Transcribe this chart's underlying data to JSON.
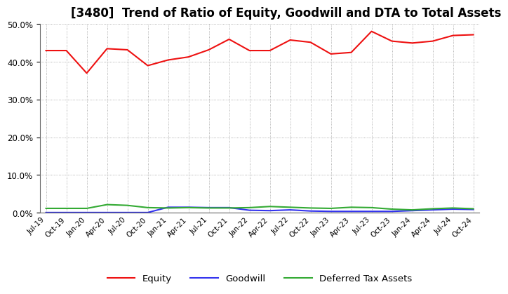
{
  "title": "[3480]  Trend of Ratio of Equity, Goodwill and DTA to Total Assets",
  "x_labels": [
    "Jul-19",
    "Oct-19",
    "Jan-20",
    "Apr-20",
    "Jul-20",
    "Oct-20",
    "Jan-21",
    "Apr-21",
    "Jul-21",
    "Oct-21",
    "Jan-22",
    "Apr-22",
    "Jul-22",
    "Oct-22",
    "Jan-23",
    "Apr-23",
    "Jul-23",
    "Oct-23",
    "Jan-24",
    "Apr-24",
    "Jul-24",
    "Oct-24"
  ],
  "equity": [
    0.43,
    0.43,
    0.37,
    0.435,
    0.432,
    0.39,
    0.405,
    0.413,
    0.432,
    0.46,
    0.43,
    0.43,
    0.458,
    0.452,
    0.421,
    0.425,
    0.481,
    0.455,
    0.45,
    0.455,
    0.47,
    0.472
  ],
  "goodwill": [
    0.0,
    0.0,
    0.0,
    0.0,
    0.0,
    0.0,
    0.014,
    0.014,
    0.013,
    0.013,
    0.006,
    0.005,
    0.007,
    0.004,
    0.003,
    0.003,
    0.003,
    0.003,
    0.005,
    0.007,
    0.009,
    0.008
  ],
  "dta": [
    0.011,
    0.011,
    0.011,
    0.021,
    0.019,
    0.013,
    0.012,
    0.013,
    0.012,
    0.012,
    0.013,
    0.016,
    0.014,
    0.012,
    0.011,
    0.014,
    0.013,
    0.009,
    0.007,
    0.01,
    0.012,
    0.01
  ],
  "equity_color": "#EE1111",
  "goodwill_color": "#3333EE",
  "dta_color": "#33AA33",
  "ylim": [
    0.0,
    0.5
  ],
  "yticks": [
    0.0,
    0.1,
    0.2,
    0.3,
    0.4,
    0.5
  ],
  "background_color": "#FFFFFF",
  "plot_bg_color": "#FFFFFF",
  "grid_color": "#999999",
  "title_fontsize": 12,
  "legend_labels": [
    "Equity",
    "Goodwill",
    "Deferred Tax Assets"
  ]
}
